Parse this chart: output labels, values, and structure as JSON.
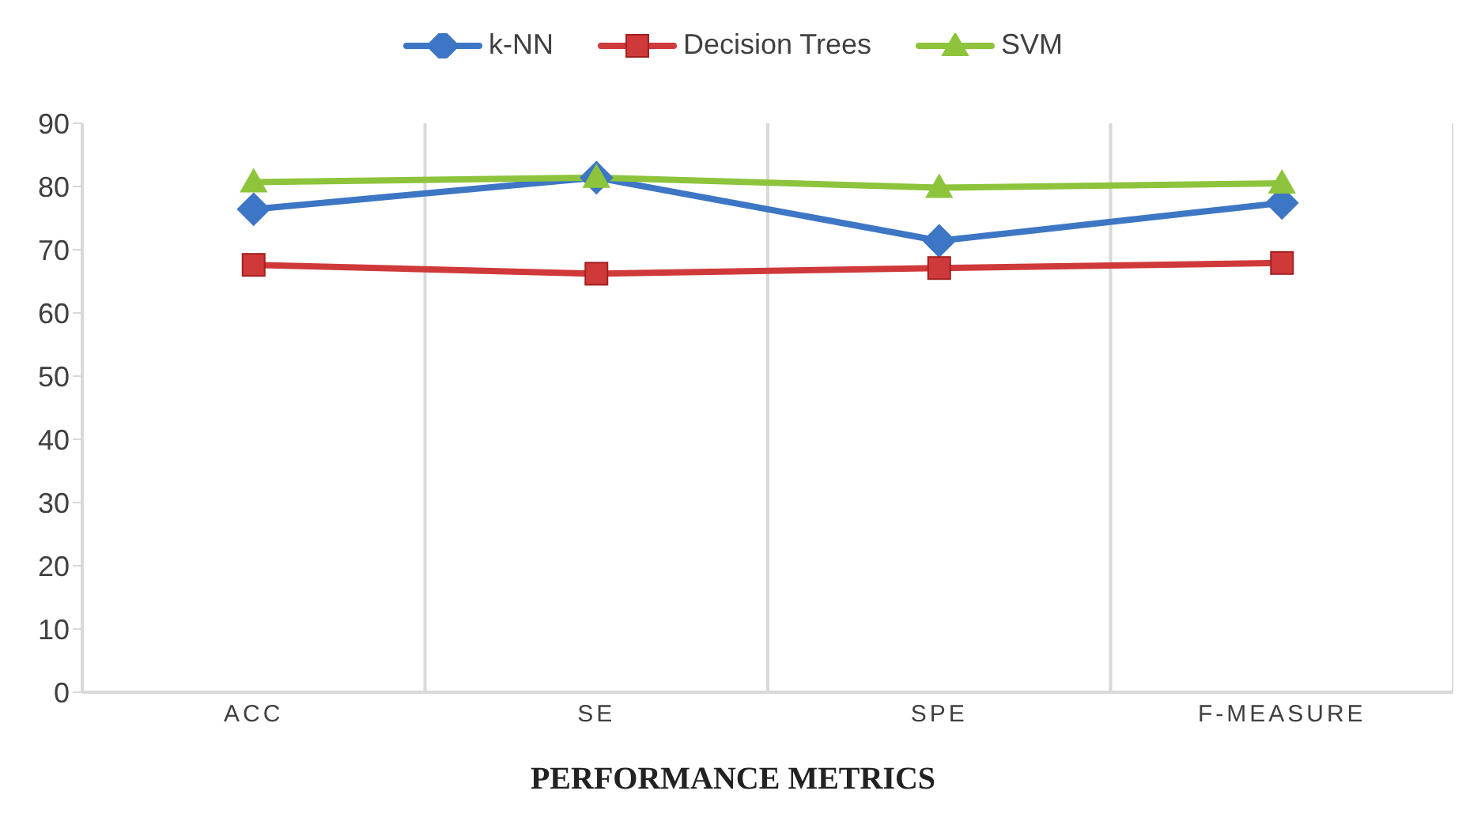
{
  "chart_data": {
    "type": "line",
    "xlabel": "PERFORMANCE METRICS",
    "categories": [
      "ACC",
      "SE",
      "SPE",
      "F-MEASURE"
    ],
    "series": [
      {
        "name": "k-NN",
        "color": "#3d76c4",
        "marker": "diamond",
        "values": [
          76.4,
          81.4,
          71.4,
          77.4
        ]
      },
      {
        "name": "Decision Trees",
        "color": "#d0393a",
        "marker": "square",
        "values": [
          67.6,
          66.2,
          67.1,
          67.9
        ]
      },
      {
        "name": "SVM",
        "color": "#8dc43c",
        "marker": "triangle",
        "values": [
          80.7,
          81.4,
          79.8,
          80.5
        ]
      }
    ],
    "ylim": [
      0,
      90
    ],
    "yticks": [
      0,
      10,
      20,
      30,
      40,
      50,
      60,
      70,
      80,
      90
    ],
    "grid": "x",
    "legend": "top"
  }
}
